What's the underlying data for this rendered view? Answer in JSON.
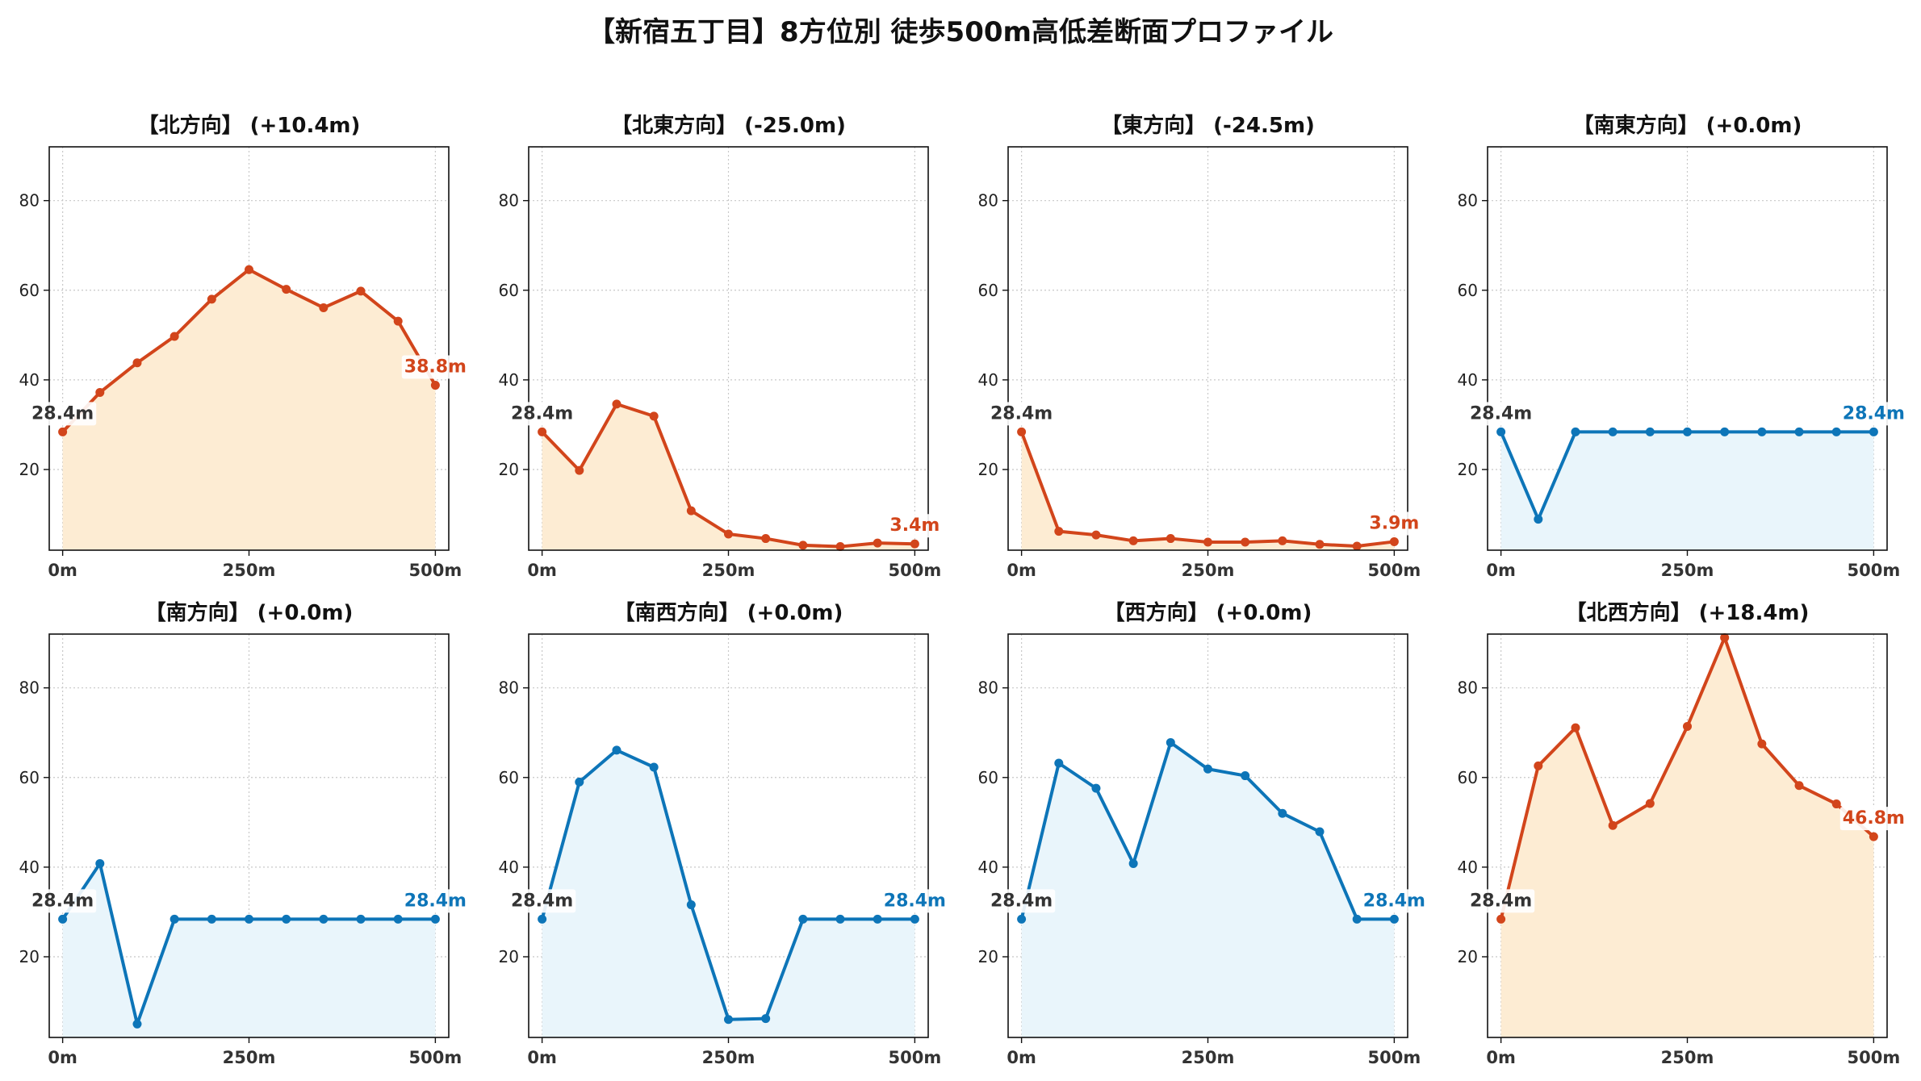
{
  "figure": {
    "title": "【新宿五丁目】8方位別 徒歩500m高低差断面プロファイル"
  },
  "colors": {
    "up_line": "#d2451b",
    "up_fill": "#fdecd3",
    "flat_line": "#0d75b8",
    "flat_fill": "#e9f5fb",
    "start_label": "#333333",
    "grid": "#c8c8c8"
  },
  "chart_data": [
    {
      "type": "area",
      "title": "【北方向】 (+10.4m)",
      "theme": "up",
      "x": [
        0,
        50,
        100,
        150,
        200,
        250,
        300,
        350,
        400,
        450,
        500
      ],
      "values": [
        28.4,
        37.2,
        43.8,
        49.7,
        58.0,
        64.6,
        60.2,
        56.1,
        59.8,
        53.1,
        38.8
      ],
      "start_label": "28.4m",
      "end_label": "38.8m",
      "xticks": [
        "0m",
        "250m",
        "500m"
      ],
      "xtick_values": [
        0,
        250,
        500
      ],
      "yticks": [
        20,
        40,
        60,
        80
      ],
      "ylim": [
        2,
        92
      ],
      "xlim": [
        -18,
        518
      ],
      "grid": true
    },
    {
      "type": "area",
      "title": "【北東方向】 (-25.0m)",
      "theme": "up",
      "x": [
        0,
        50,
        100,
        150,
        200,
        250,
        300,
        350,
        400,
        450,
        500
      ],
      "values": [
        28.4,
        19.8,
        34.6,
        31.9,
        10.8,
        5.6,
        4.6,
        3.1,
        2.8,
        3.6,
        3.4
      ],
      "start_label": "28.4m",
      "end_label": "3.4m",
      "xticks": [
        "0m",
        "250m",
        "500m"
      ],
      "xtick_values": [
        0,
        250,
        500
      ],
      "yticks": [
        20,
        40,
        60,
        80
      ],
      "ylim": [
        2,
        92
      ],
      "xlim": [
        -18,
        518
      ],
      "grid": true
    },
    {
      "type": "area",
      "title": "【東方向】 (-24.5m)",
      "theme": "up",
      "x": [
        0,
        50,
        100,
        150,
        200,
        250,
        300,
        350,
        400,
        450,
        500
      ],
      "values": [
        28.4,
        6.2,
        5.4,
        4.1,
        4.6,
        3.8,
        3.8,
        4.1,
        3.3,
        2.9,
        3.9
      ],
      "start_label": "28.4m",
      "end_label": "3.9m",
      "xticks": [
        "0m",
        "250m",
        "500m"
      ],
      "xtick_values": [
        0,
        250,
        500
      ],
      "yticks": [
        20,
        40,
        60,
        80
      ],
      "ylim": [
        2,
        92
      ],
      "xlim": [
        -18,
        518
      ],
      "grid": true
    },
    {
      "type": "area",
      "title": "【南東方向】 (+0.0m)",
      "theme": "flat",
      "x": [
        0,
        50,
        100,
        150,
        200,
        250,
        300,
        350,
        400,
        450,
        500
      ],
      "values": [
        28.4,
        8.9,
        28.4,
        28.4,
        28.4,
        28.4,
        28.4,
        28.4,
        28.4,
        28.4,
        28.4
      ],
      "start_label": "28.4m",
      "end_label": "28.4m",
      "xticks": [
        "0m",
        "250m",
        "500m"
      ],
      "xtick_values": [
        0,
        250,
        500
      ],
      "yticks": [
        20,
        40,
        60,
        80
      ],
      "ylim": [
        2,
        92
      ],
      "xlim": [
        -18,
        518
      ],
      "grid": true
    },
    {
      "type": "area",
      "title": "【南方向】 (+0.0m)",
      "theme": "flat",
      "x": [
        0,
        50,
        100,
        150,
        200,
        250,
        300,
        350,
        400,
        450,
        500
      ],
      "values": [
        28.4,
        40.8,
        5.0,
        28.4,
        28.4,
        28.4,
        28.4,
        28.4,
        28.4,
        28.4,
        28.4
      ],
      "start_label": "28.4m",
      "end_label": "28.4m",
      "xticks": [
        "0m",
        "250m",
        "500m"
      ],
      "xtick_values": [
        0,
        250,
        500
      ],
      "yticks": [
        20,
        40,
        60,
        80
      ],
      "ylim": [
        2,
        92
      ],
      "xlim": [
        -18,
        518
      ],
      "grid": true
    },
    {
      "type": "area",
      "title": "【南西方向】 (+0.0m)",
      "theme": "flat",
      "x": [
        0,
        50,
        100,
        150,
        200,
        250,
        300,
        350,
        400,
        450,
        500
      ],
      "values": [
        28.4,
        59.0,
        66.1,
        62.3,
        31.6,
        6.0,
        6.2,
        28.4,
        28.4,
        28.4,
        28.4
      ],
      "start_label": "28.4m",
      "end_label": "28.4m",
      "xticks": [
        "0m",
        "250m",
        "500m"
      ],
      "xtick_values": [
        0,
        250,
        500
      ],
      "yticks": [
        20,
        40,
        60,
        80
      ],
      "ylim": [
        2,
        92
      ],
      "xlim": [
        -18,
        518
      ],
      "grid": true
    },
    {
      "type": "area",
      "title": "【西方向】 (+0.0m)",
      "theme": "flat",
      "x": [
        0,
        50,
        100,
        150,
        200,
        250,
        300,
        350,
        400,
        450,
        500
      ],
      "values": [
        28.4,
        63.2,
        57.6,
        40.8,
        67.8,
        61.9,
        60.4,
        52.0,
        47.9,
        28.4,
        28.4
      ],
      "start_label": "28.4m",
      "end_label": "28.4m",
      "xticks": [
        "0m",
        "250m",
        "500m"
      ],
      "xtick_values": [
        0,
        250,
        500
      ],
      "yticks": [
        20,
        40,
        60,
        80
      ],
      "ylim": [
        2,
        92
      ],
      "xlim": [
        -18,
        518
      ],
      "grid": true
    },
    {
      "type": "area",
      "title": "【北西方向】 (+18.4m)",
      "theme": "up",
      "x": [
        0,
        50,
        100,
        150,
        200,
        250,
        300,
        350,
        400,
        450,
        500
      ],
      "values": [
        28.4,
        62.6,
        71.1,
        49.3,
        54.2,
        71.4,
        91.2,
        67.5,
        58.2,
        54.1,
        46.8
      ],
      "start_label": "28.4m",
      "end_label": "46.8m",
      "xticks": [
        "0m",
        "250m",
        "500m"
      ],
      "xtick_values": [
        0,
        250,
        500
      ],
      "yticks": [
        20,
        40,
        60,
        80
      ],
      "ylim": [
        2,
        92
      ],
      "xlim": [
        -18,
        518
      ],
      "grid": true
    }
  ]
}
